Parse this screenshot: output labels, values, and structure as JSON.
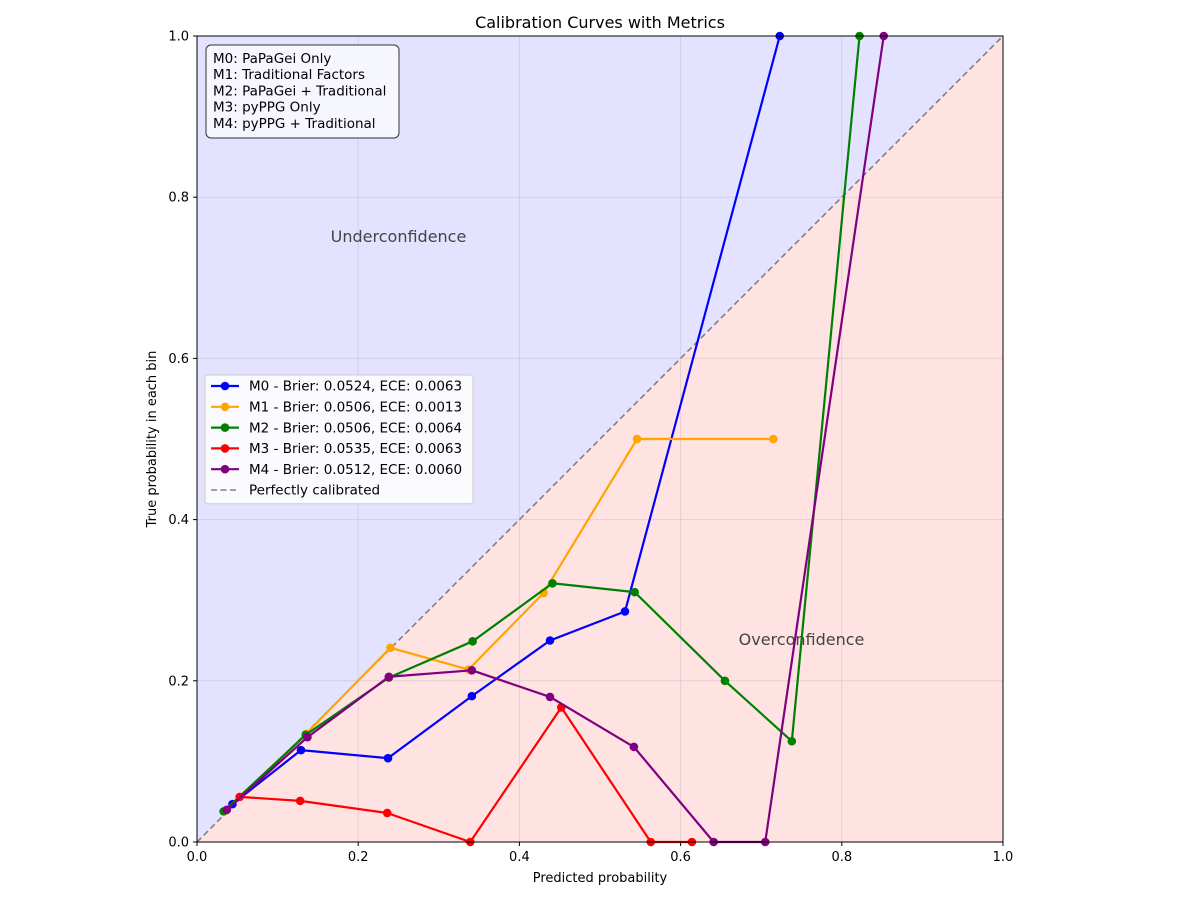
{
  "chart_data": {
    "type": "line",
    "title": "Calibration Curves with Metrics",
    "xlabel": "Predicted probability",
    "ylabel": "True probability in each bin",
    "xlim": [
      0.0,
      1.0
    ],
    "ylim": [
      0.0,
      1.0
    ],
    "x_ticks": [
      "0.0",
      "0.2",
      "0.4",
      "0.6",
      "0.8",
      "1.0"
    ],
    "y_ticks": [
      "0.0",
      "0.2",
      "0.4",
      "0.6",
      "0.8",
      "1.0"
    ],
    "grid": true,
    "legend_position": "center-left",
    "info_box_position": "top-left",
    "regions": {
      "under": {
        "label": "Underconfidence",
        "color": "#e3e3ff"
      },
      "over": {
        "label": "Overconfidence",
        "color": "#ffe3e3"
      }
    },
    "region_label_positions": {
      "under": [
        0.25,
        0.75
      ],
      "over": [
        0.75,
        0.25
      ]
    },
    "model_descriptions": [
      "M0: PaPaGei Only",
      "M1: Traditional Factors",
      "M2: PaPaGei + Traditional",
      "M3: pyPPG Only",
      "M4: pyPPG + Traditional"
    ],
    "series": [
      {
        "name": "M0 - Brier: 0.0524, ECE: 0.0063",
        "color": "#0000ff",
        "x": [
          0.044,
          0.129,
          0.237,
          0.341,
          0.438,
          0.531,
          0.723
        ],
        "y": [
          0.047,
          0.114,
          0.104,
          0.181,
          0.25,
          0.286,
          1.0
        ]
      },
      {
        "name": "M1 - Brier: 0.0506, ECE: 0.0013",
        "color": "#ffa500",
        "x": [
          0.036,
          0.135,
          0.24,
          0.337,
          0.43,
          0.546,
          0.715
        ],
        "y": [
          0.039,
          0.134,
          0.241,
          0.214,
          0.309,
          0.5,
          0.5
        ]
      },
      {
        "name": "M2 - Brier: 0.0506, ECE: 0.0064",
        "color": "#008000",
        "x": [
          0.033,
          0.135,
          0.238,
          0.342,
          0.441,
          0.543,
          0.655,
          0.738,
          0.822
        ],
        "y": [
          0.038,
          0.133,
          0.204,
          0.249,
          0.321,
          0.31,
          0.2,
          0.125,
          1.0
        ]
      },
      {
        "name": "M3 - Brier: 0.0535, ECE: 0.0063",
        "color": "#ff0000",
        "x": [
          0.053,
          0.128,
          0.236,
          0.339,
          0.452,
          0.563,
          0.614
        ],
        "y": [
          0.056,
          0.051,
          0.036,
          0.0,
          0.167,
          0.0,
          0.0
        ]
      },
      {
        "name": "M4 - Brier: 0.0512, ECE: 0.0060",
        "color": "#800080",
        "x": [
          0.037,
          0.137,
          0.238,
          0.341,
          0.438,
          0.542,
          0.641,
          0.705,
          0.852
        ],
        "y": [
          0.04,
          0.13,
          0.205,
          0.213,
          0.18,
          0.118,
          0.0,
          0.0,
          1.0
        ]
      }
    ],
    "reference": {
      "name": "Perfectly calibrated",
      "color": "#808080",
      "x": [
        0.0,
        1.0
      ],
      "y": [
        0.0,
        1.0
      ]
    }
  }
}
